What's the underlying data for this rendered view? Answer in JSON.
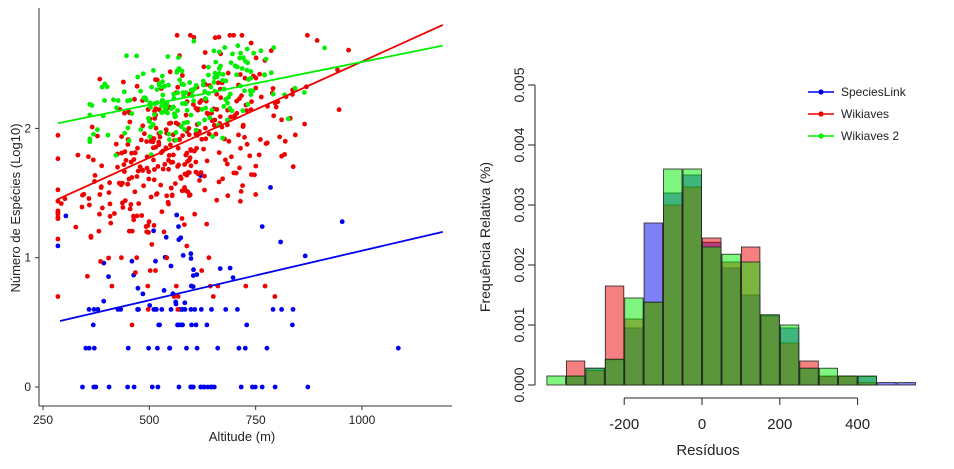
{
  "chart_data": [
    {
      "type": "scatter",
      "xlabel": "Altitude (m)",
      "ylabel": "Número de Espécies (Log10)",
      "xlim": [
        240,
        1200
      ],
      "ylim": [
        -0.1,
        2.9
      ],
      "xticks": [
        "250",
        "500",
        "750",
        "1000"
      ],
      "yticks": [
        "0",
        "1",
        "2"
      ],
      "series": [
        {
          "color": "#0000ee",
          "trend": [
            [
              290,
              0.51
            ],
            [
              1190,
              1.2
            ]
          ]
        },
        {
          "color": "#ee0000",
          "trend": [
            [
              283,
              1.45
            ],
            [
              1190,
              2.8
            ]
          ]
        },
        {
          "color": "#00ee00",
          "trend": [
            [
              285,
              2.04
            ],
            [
              1190,
              2.64
            ]
          ]
        }
      ],
      "grid": false
    },
    {
      "type": "bar",
      "subtype": "overlaid-histogram",
      "xlabel": "Resíduos",
      "ylabel": "Frequência Relativa (%)",
      "xlim": [
        -400,
        550
      ],
      "ylim": [
        0,
        0.005
      ],
      "xticks": [
        "-200",
        "0",
        "200",
        "400"
      ],
      "yticks": [
        "0.000",
        "0.001",
        "0.002",
        "0.003",
        "0.004",
        "0.005"
      ],
      "bin_edges": [
        -400,
        -350,
        -300,
        -250,
        -200,
        -150,
        -100,
        -50,
        0,
        50,
        100,
        150,
        200,
        250,
        300,
        350,
        400,
        450,
        500,
        550
      ],
      "series": [
        {
          "name": "SpeciesLink",
          "color": "#0000ee",
          "values": [
            0,
            0.00014,
            0.00028,
            0.00042,
            0.00095,
            0.0027,
            0.0032,
            0.0035,
            0.00238,
            0.00195,
            0.0015,
            0.00117,
            0.00095,
            0.00028,
            0.00014,
            0.00014,
            0.00014,
            4e-05,
            4e-05
          ]
        },
        {
          "name": "Wikiaves",
          "color": "#ee0000",
          "values": [
            0,
            0.0004,
            0.00024,
            0.00165,
            0.0011,
            0.00138,
            0.003,
            0.0033,
            0.00245,
            0.00205,
            0.0023,
            0.00115,
            0.0007,
            0.0004,
            0.00015,
            0.00015,
            4e-05,
            0,
            0
          ]
        },
        {
          "name": "Wikiaves 2",
          "color": "#00ee00",
          "values": [
            0.00015,
            0.00015,
            0.00028,
            0.00043,
            0.00145,
            0.00138,
            0.0036,
            0.0036,
            0.0023,
            0.00218,
            0.00205,
            0.00117,
            0.001,
            0.00028,
            0.00028,
            0.00015,
            0.00015,
            0,
            0
          ]
        }
      ],
      "legend_position": "top-right"
    }
  ]
}
